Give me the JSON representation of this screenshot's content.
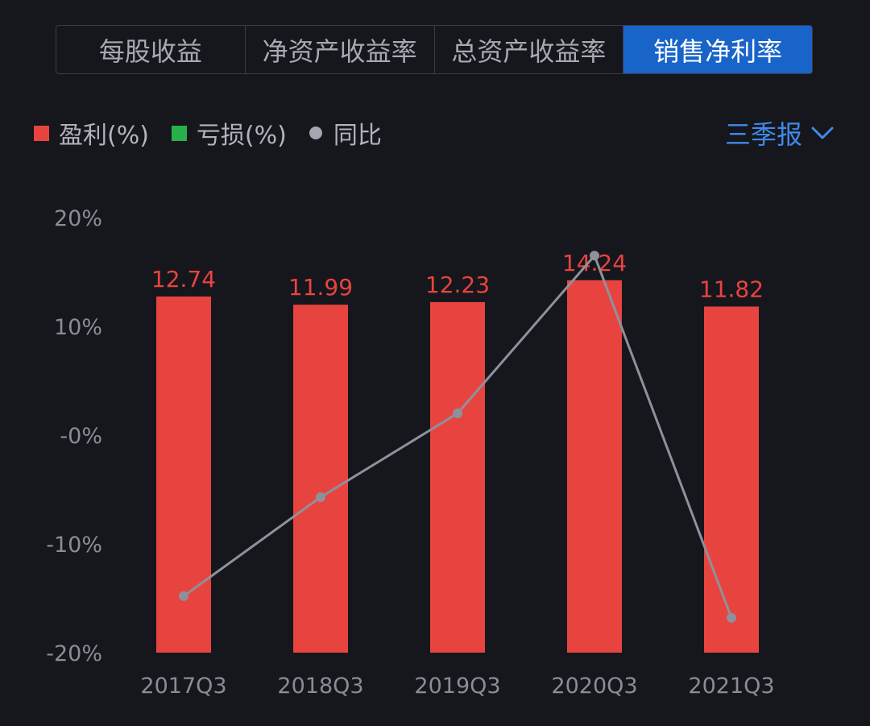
{
  "tabs": [
    {
      "label": "每股收益",
      "active": false
    },
    {
      "label": "净资产收益率",
      "active": false
    },
    {
      "label": "总资产收益率",
      "active": false
    },
    {
      "label": "销售净利率",
      "active": true
    }
  ],
  "legend": {
    "profit_label": "盈利(%)",
    "loss_label": "亏损(%)",
    "yoy_label": "同比"
  },
  "period_selector": {
    "label": "三季报",
    "icon": "chevron-down-icon"
  },
  "colors": {
    "profit": "#e8443f",
    "loss": "#27b04a",
    "yoy": "#8e919c",
    "accent": "#1864c9",
    "axis_text": "#8b8c96"
  },
  "chart_data": {
    "type": "bar",
    "categories": [
      "2017Q3",
      "2018Q3",
      "2019Q3",
      "2020Q3",
      "2021Q3"
    ],
    "series": [
      {
        "name": "盈利(%)",
        "type": "bar",
        "values": [
          12.74,
          11.99,
          12.23,
          14.24,
          11.82
        ],
        "labels": [
          "12.74",
          "11.99",
          "12.23",
          "14.24",
          "11.82"
        ]
      },
      {
        "name": "同比",
        "type": "line",
        "values": [
          -14.8,
          -5.7,
          2.0,
          16.5,
          -16.8
        ]
      }
    ],
    "y_ticks": [
      20,
      10,
      0,
      -10,
      -20
    ],
    "y_tick_labels": [
      "20%",
      "10%",
      "-0%",
      "-10%",
      "-20%"
    ],
    "ylim": [
      -20,
      20
    ],
    "xlabel": "",
    "ylabel": "",
    "legend_position": "top-left",
    "grid": false
  }
}
